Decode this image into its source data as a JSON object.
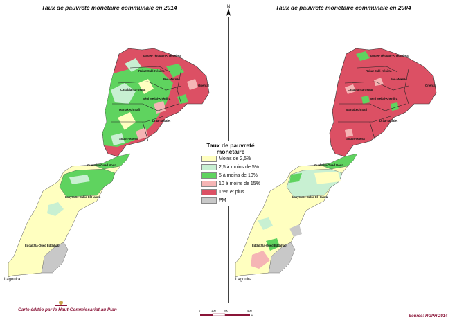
{
  "maps": {
    "left": {
      "title": "Taux de pauvreté monétaire communale en 2014",
      "region_labels": [
        "Tanger-Tétouan-Al Hoceima",
        "Rabat-Salé-Kénitra",
        "Fès-Meknès",
        "Oriental",
        "Casablanca-Settat",
        "Béni Mellal-Khénifra",
        "Marrakech-Safi",
        "Drâa-Tafilalet",
        "Souss-Massa",
        "Guelmim-Oued Noun",
        "Laayoune-Sakia El Hamra",
        "Eddakhla-Oued Eddahab"
      ],
      "corner_label": "Lagouira"
    },
    "right": {
      "title": "Taux de pauvreté monétaire communale en 2004",
      "region_labels": [
        "Tanger-Tétouan-Al Hoceima",
        "Rabat-Salé-Kénitra",
        "Fès-Meknès",
        "Oriental",
        "Casablanca-Settat",
        "Béni Mellal-Khénifra",
        "Marrakech-Safi",
        "Drâa-Tafilalet",
        "Souss-Massa",
        "Guelmim-Oued Noun",
        "Laayoune-Sakia El Hamra",
        "Eddakhla-Oued Eddahab"
      ],
      "corner_label": "Lagouira"
    }
  },
  "legend": {
    "title": "Taux de pauvreté monétaire",
    "items": [
      {
        "label": "Moins de 2,5%",
        "color": "#ffffc0"
      },
      {
        "label": "2,5 à moins de 5%",
        "color": "#c8f0d2"
      },
      {
        "label": "5 à moins de 10%",
        "color": "#5fd35f"
      },
      {
        "label": "10 à moins de 15%",
        "color": "#f5b5b5"
      },
      {
        "label": "15% et plus",
        "color": "#dc5064"
      },
      {
        "label": "PM",
        "color": "#c8c8c8"
      }
    ]
  },
  "north_label": "N",
  "scale": {
    "ticks": [
      "0",
      "100",
      "200",
      "400"
    ],
    "unit": "Km"
  },
  "footer": {
    "left": "Carte éditée par le Haut-Commissariat au Plan",
    "right": "Source: RGPH 2014"
  }
}
